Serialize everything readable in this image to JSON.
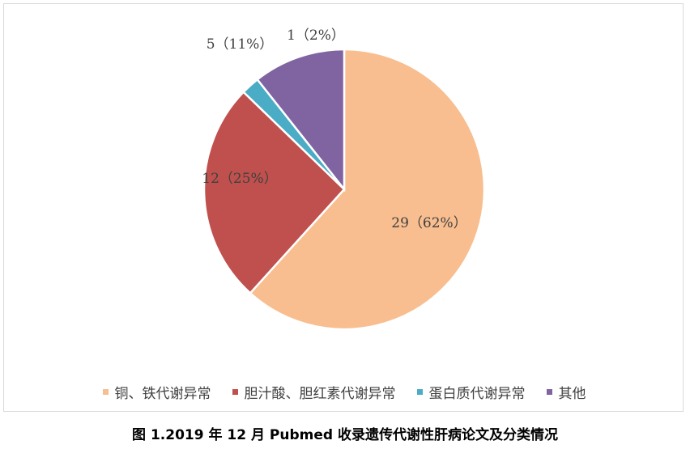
{
  "caption": "图 1.2019 年 12 月 Pubmed 收录遗传代谢性肝病论文及分类情况",
  "chart_data": {
    "type": "pie",
    "start_angle_deg": 0,
    "direction": "clockwise",
    "legend_position": "bottom",
    "slices": [
      {
        "name": "铜、铁代谢异常",
        "value": 29,
        "label": "29（62%）",
        "color": "#f8be8f"
      },
      {
        "name": "胆汁酸、胆红素代谢异常",
        "value": 12,
        "label": "12（25%）",
        "color": "#c0504d"
      },
      {
        "name": "蛋白质代谢异常",
        "value": 1,
        "label": "1（2%）",
        "color": "#4bacc6"
      },
      {
        "name": "其他",
        "value": 5,
        "label": "5（11%）",
        "color": "#8064a2"
      }
    ]
  }
}
